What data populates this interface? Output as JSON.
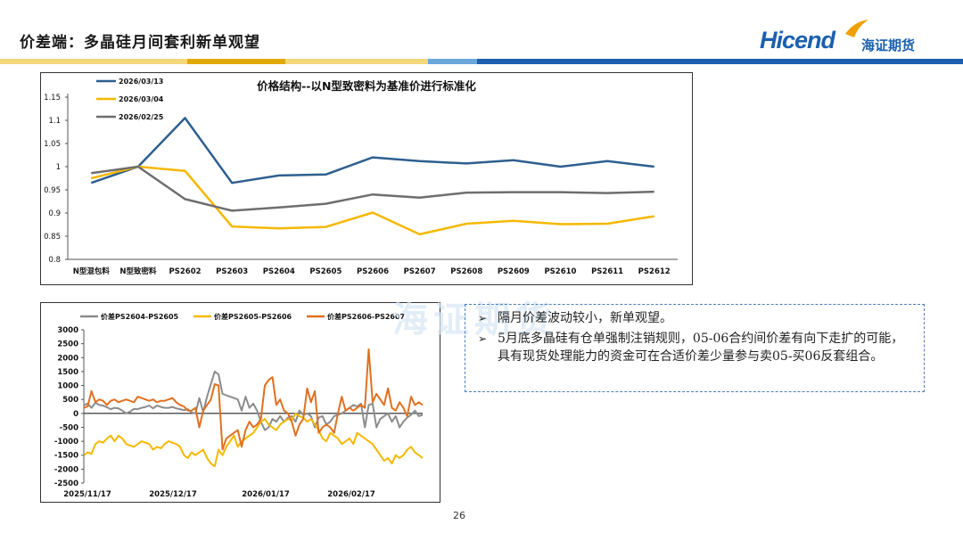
{
  "header": {
    "title": "价差端：多晶硅月间套利新单观望",
    "logo_text": "Hicend",
    "logo_cn": "海证期货",
    "stripe_colors": [
      "#f5d77a",
      "#e0a800",
      "#f5d77a",
      "#6aa8dc",
      "#1b5fae"
    ]
  },
  "watermark": "海证期货",
  "page_number": "26",
  "chart1": {
    "type": "line",
    "title": "价格结构--以N型致密料为基准价进行标准化",
    "categories": [
      "N型混包料",
      "N型致密料",
      "PS2602",
      "PS2603",
      "PS2604",
      "PS2605",
      "PS2606",
      "PS2607",
      "PS2608",
      "PS2609",
      "PS2610",
      "PS2611",
      "PS2612"
    ],
    "ylim": [
      0.8,
      1.15
    ],
    "yticks": [
      "0.8",
      "0.85",
      "0.9",
      "0.95",
      "1",
      "1.05",
      "1.1",
      "1.15"
    ],
    "legend_position": "top-left",
    "series": [
      {
        "name": "2026/03/13",
        "color": "#2e5f8f",
        "values": [
          0.965,
          1.0,
          1.105,
          0.965,
          0.981,
          0.983,
          1.02,
          1.012,
          1.007,
          1.014,
          1.0,
          1.012,
          1.0
        ]
      },
      {
        "name": "2026/03/04",
        "color": "#f5b800",
        "values": [
          0.975,
          1.0,
          0.991,
          0.871,
          0.867,
          0.87,
          0.901,
          0.854,
          0.877,
          0.883,
          0.876,
          0.877,
          0.893
        ]
      },
      {
        "name": "2026/02/25",
        "color": "#6e6e6e",
        "values": [
          0.986,
          1.0,
          0.93,
          0.905,
          0.912,
          0.92,
          0.94,
          0.933,
          0.944,
          0.945,
          0.945,
          0.943,
          0.946
        ]
      }
    ]
  },
  "chart2": {
    "type": "line",
    "ylim": [
      -2500,
      3000
    ],
    "yticks": [
      "-2500",
      "-2000",
      "-1500",
      "-1000",
      "-500",
      "0",
      "500",
      "1000",
      "1500",
      "2000",
      "2500",
      "3000"
    ],
    "x_labels": [
      "2025/11/17",
      "2025/12/17",
      "2026/01/17",
      "2026/02/17"
    ],
    "legend_position": "top",
    "series": [
      {
        "name": "价差PS2604-PS2605",
        "color": "#8c8c8c",
        "values": [
          300,
          350,
          200,
          380,
          300,
          280,
          220,
          150,
          200,
          180,
          100,
          0,
          60,
          160,
          150,
          200,
          230,
          280,
          180,
          280,
          230,
          200,
          200,
          230,
          180,
          150,
          120,
          150,
          30,
          0,
          550,
          50,
          600,
          1050,
          1500,
          1400,
          700,
          650,
          600,
          550,
          500,
          100,
          600,
          200,
          350,
          100,
          -300,
          -600,
          -500,
          -200,
          -300,
          -100,
          -300,
          -150,
          -100,
          -300,
          100,
          -50,
          0,
          -100,
          -500,
          -150,
          -100,
          -400,
          -300,
          -100,
          -50,
          0,
          100,
          200,
          300,
          250,
          350,
          -500,
          300,
          350,
          -500,
          -200,
          -100,
          0,
          -300,
          -100,
          -500,
          -300,
          -150,
          -50,
          100,
          -100,
          -50
        ]
      },
      {
        "name": "价差PS2605-PS2606",
        "color": "#f5b800",
        "values": [
          -1500,
          -1400,
          -1450,
          -1100,
          -1000,
          -1050,
          -900,
          -800,
          -1000,
          -800,
          -900,
          -1100,
          -1150,
          -1200,
          -1100,
          -1000,
          -1050,
          -1100,
          -1300,
          -1200,
          -1250,
          -1100,
          -1000,
          -1050,
          -1100,
          -1200,
          -1500,
          -1600,
          -1400,
          -1500,
          -1400,
          -1300,
          -1600,
          -1800,
          -1900,
          -1300,
          -1500,
          -1200,
          -1000,
          -800,
          -1200,
          -1000,
          -900,
          -800,
          -700,
          -500,
          -300,
          -200,
          -400,
          -500,
          -600,
          -400,
          -300,
          -200,
          -250,
          0,
          -100,
          -150,
          -300,
          -200,
          -400,
          -600,
          -900,
          -1000,
          -700,
          -800,
          -900,
          -1100,
          -1000,
          -900,
          -1100,
          -700,
          -800,
          -900,
          -1000,
          -1100,
          -1300,
          -1500,
          -1700,
          -1600,
          -1800,
          -1500,
          -1600,
          -1500,
          -1300,
          -1200,
          -1400,
          -1500,
          -1600
        ]
      },
      {
        "name": "价差PS2606-PS2607",
        "color": "#e07020",
        "values": [
          200,
          250,
          800,
          400,
          500,
          450,
          300,
          450,
          500,
          400,
          450,
          500,
          450,
          400,
          600,
          550,
          500,
          450,
          500,
          400,
          450,
          450,
          500,
          550,
          400,
          300,
          250,
          100,
          100,
          200,
          -500,
          100,
          300,
          500,
          1050,
          1000,
          -1300,
          -900,
          -800,
          -700,
          -600,
          -1200,
          -600,
          -300,
          -500,
          -400,
          -200,
          1000,
          1200,
          1300,
          300,
          500,
          100,
          0,
          -300,
          -800,
          -400,
          -200,
          900,
          400,
          800,
          -700,
          -500,
          -400,
          -500,
          -700,
          0,
          600,
          100,
          200,
          100,
          200,
          300,
          200,
          2300,
          400,
          700,
          500,
          300,
          900,
          200,
          100,
          400,
          200,
          -100,
          600,
          300,
          400,
          300
        ]
      }
    ]
  },
  "notes": [
    "隔月价差波动较小，新单观望。",
    "5月底多晶硅有仓单强制注销规则，05-06合约间价差有向下走扩的可能，具有现货处理能力的资金可在合适价差少量参与卖05-买06反套组合。"
  ]
}
